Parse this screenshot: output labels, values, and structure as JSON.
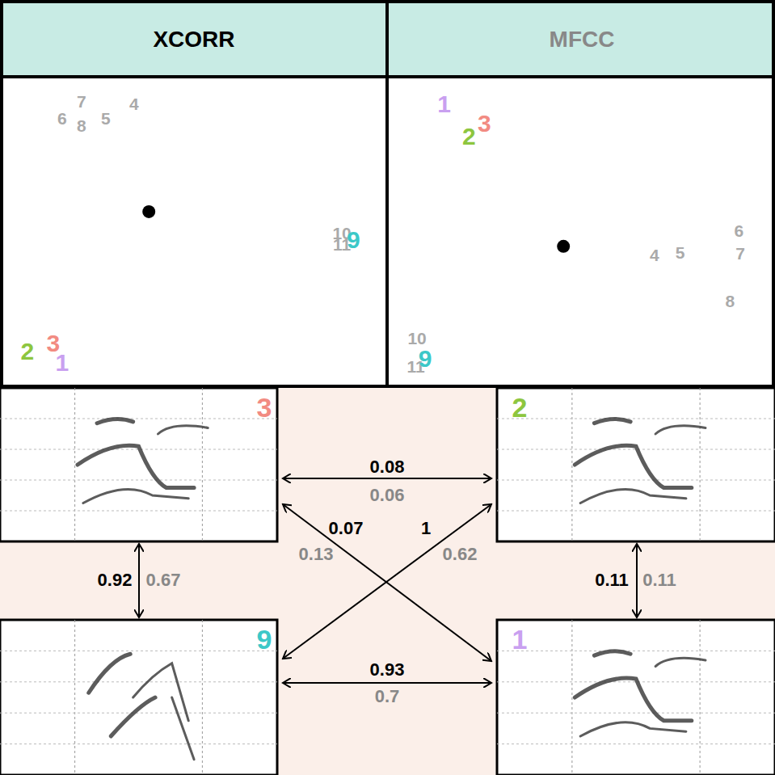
{
  "chart_data": [
    {
      "type": "scatter",
      "title": "XCORR",
      "xlim": [
        0,
        100
      ],
      "ylim": [
        0,
        100
      ],
      "tick_labels": false,
      "grid": false,
      "series": [
        {
          "marker": "text",
          "labels": [
            "6",
            "7",
            "8",
            "5",
            "4",
            "10",
            "11",
            "2",
            "3",
            "1",
            "9"
          ],
          "x": [
            15.4,
            20.5,
            20.5,
            26.8,
            34.2,
            88.6,
            88.6,
            6.3,
            13.1,
            15.4,
            91.6
          ],
          "y": [
            87.1,
            92.4,
            84.5,
            87.1,
            91.6,
            49.7,
            45.8,
            11.1,
            13.7,
            7.6,
            47.4
          ],
          "colors": [
            "#aaaaaa",
            "#aaaaaa",
            "#aaaaaa",
            "#aaaaaa",
            "#aaaaaa",
            "#aaaaaa",
            "#aaaaaa",
            "#8dc63f",
            "#f28b82",
            "#c9a0f0",
            "#3cc8c8"
          ]
        },
        {
          "marker": "circle",
          "color": "#000000",
          "x": [
            38.1
          ],
          "y": [
            56.6
          ]
        }
      ]
    },
    {
      "type": "scatter",
      "title": "MFCC",
      "xlim": [
        0,
        100
      ],
      "ylim": [
        0,
        100
      ],
      "tick_labels": false,
      "grid": false,
      "series": [
        {
          "marker": "text",
          "labels": [
            "4",
            "5",
            "6",
            "7",
            "8",
            "10",
            "11",
            "1",
            "3",
            "2",
            "9"
          ],
          "x": [
            69.3,
            76.0,
            91.4,
            91.8,
            89.1,
            7.2,
            6.9,
            14.3,
            24.8,
            20.8,
            9.3
          ],
          "y": [
            42.4,
            43.4,
            50.3,
            42.9,
            27.4,
            15.3,
            6.3,
            91.6,
            85.3,
            81.3,
            8.7
          ],
          "colors": [
            "#aaaaaa",
            "#aaaaaa",
            "#aaaaaa",
            "#aaaaaa",
            "#aaaaaa",
            "#aaaaaa",
            "#aaaaaa",
            "#c9a0f0",
            "#f28b82",
            "#8dc63f",
            "#3cc8c8"
          ]
        },
        {
          "marker": "circle",
          "color": "#000000",
          "x": [
            45.5
          ],
          "y": [
            45.3
          ]
        }
      ]
    }
  ],
  "diagram": {
    "spectrograms": [
      {
        "label": "3",
        "color": "#f28b82"
      },
      {
        "label": "2",
        "color": "#8dc63f"
      },
      {
        "label": "9",
        "color": "#3cc8c8"
      },
      {
        "label": "1",
        "color": "#c9a0f0"
      }
    ],
    "pairs": [
      {
        "from": "3",
        "to": "2",
        "xcorr": 0.08,
        "mfcc": 0.06
      },
      {
        "from": "9",
        "to": "1",
        "xcorr": 0.93,
        "mfcc": 0.7
      },
      {
        "from": "3",
        "to": "9",
        "xcorr": 0.92,
        "mfcc": 0.67
      },
      {
        "from": "2",
        "to": "1",
        "xcorr": 0.11,
        "mfcc": 0.11
      },
      {
        "from": "3",
        "to": "1",
        "xcorr": 0.07,
        "mfcc": 0.13
      },
      {
        "from": "9",
        "to": "2",
        "xcorr": 1,
        "mfcc": 0.62
      }
    ]
  }
}
